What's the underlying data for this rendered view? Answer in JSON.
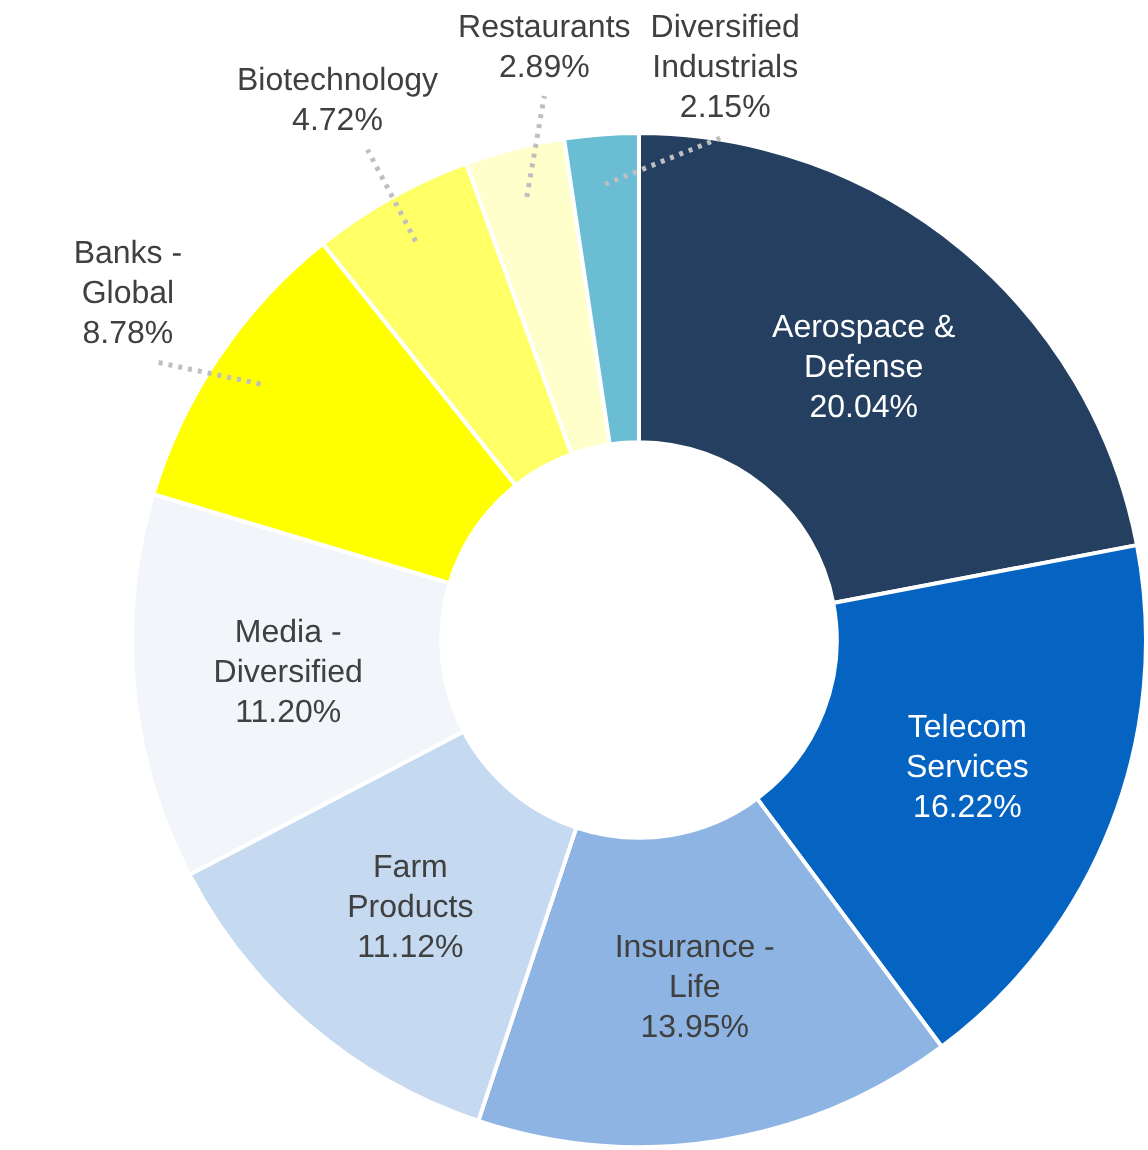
{
  "chart_data": {
    "type": "donut",
    "categories": [
      "Aerospace & Defense",
      "Telecom Services",
      "Insurance - Life",
      "Farm Products",
      "Media - Diversified",
      "Banks - Global",
      "Biotechnology",
      "Restaurants",
      "Diversified Industrials"
    ],
    "values": [
      20.04,
      16.22,
      13.95,
      11.12,
      11.2,
      8.78,
      4.72,
      2.89,
      2.15
    ],
    "value_labels": [
      "20.04%",
      "16.22%",
      "13.95%",
      "11.12%",
      "11.20%",
      "8.78%",
      "4.72%",
      "2.89%",
      "2.15%"
    ],
    "colors": [
      "#243f60",
      "#0563c1",
      "#8eb4e3",
      "#c5d9f1",
      "#f2f5f9",
      "#ffff00",
      "#ffff66",
      "#ffffcc",
      "#6bbdd4"
    ],
    "legend": false
  }
}
